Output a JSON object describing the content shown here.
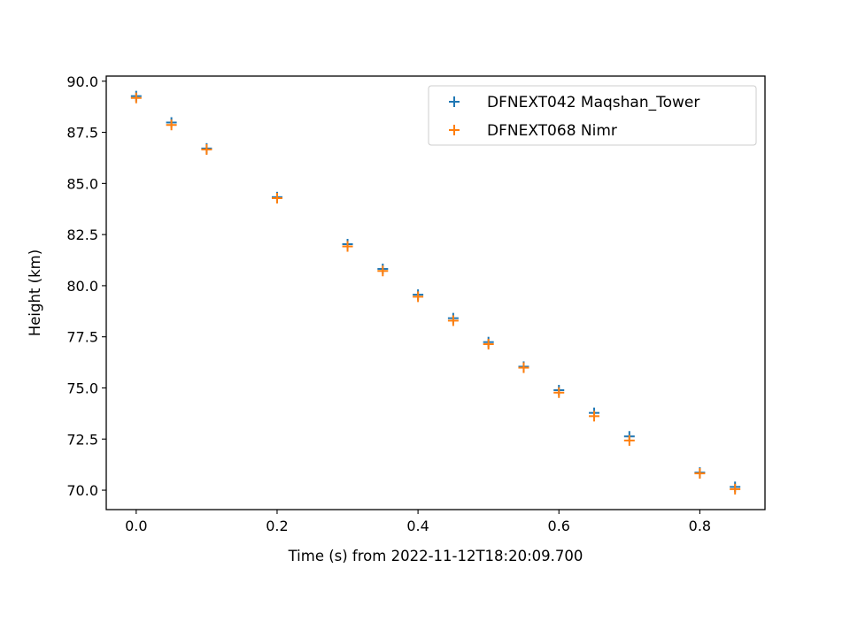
{
  "chart_data": {
    "type": "scatter",
    "marker": "plus",
    "xlabel": "Time (s) from 2022-11-12T18:20:09.700",
    "ylabel": "Height (km)",
    "xlim": [
      -0.0425,
      0.8925
    ],
    "ylim": [
      69.05,
      90.25
    ],
    "xticks": [
      0.0,
      0.2,
      0.4,
      0.6,
      0.8
    ],
    "xtick_labels": [
      "0.0",
      "0.2",
      "0.4",
      "0.6",
      "0.8"
    ],
    "yticks": [
      70.0,
      72.5,
      75.0,
      77.5,
      80.0,
      82.5,
      85.0,
      87.5,
      90.0
    ],
    "ytick_labels": [
      "70.0",
      "72.5",
      "75.0",
      "77.5",
      "80.0",
      "82.5",
      "85.0",
      "87.5",
      "90.0"
    ],
    "grid": false,
    "legend_position": "top-right",
    "series": [
      {
        "name": "DFNEXT042 Maqshan_Tower",
        "color": "#1f77b4",
        "x": [
          0.0,
          0.05,
          0.1,
          0.2,
          0.3,
          0.35,
          0.4,
          0.45,
          0.5,
          0.55,
          0.6,
          0.65,
          0.7,
          0.8,
          0.85
        ],
        "y": [
          89.27,
          87.98,
          86.71,
          84.33,
          82.03,
          80.82,
          79.56,
          78.41,
          77.24,
          76.04,
          74.89,
          73.78,
          72.63,
          70.86,
          70.16
        ]
      },
      {
        "name": "DFNEXT068 Nimr",
        "color": "#ff7f0e",
        "x": [
          0.0,
          0.05,
          0.1,
          0.2,
          0.3,
          0.35,
          0.4,
          0.45,
          0.5,
          0.55,
          0.6,
          0.65,
          0.7,
          0.8,
          0.85
        ],
        "y": [
          89.18,
          87.86,
          86.66,
          84.28,
          81.92,
          80.72,
          79.46,
          78.29,
          77.14,
          75.99,
          74.77,
          73.62,
          72.43,
          70.82,
          70.05
        ]
      }
    ]
  }
}
